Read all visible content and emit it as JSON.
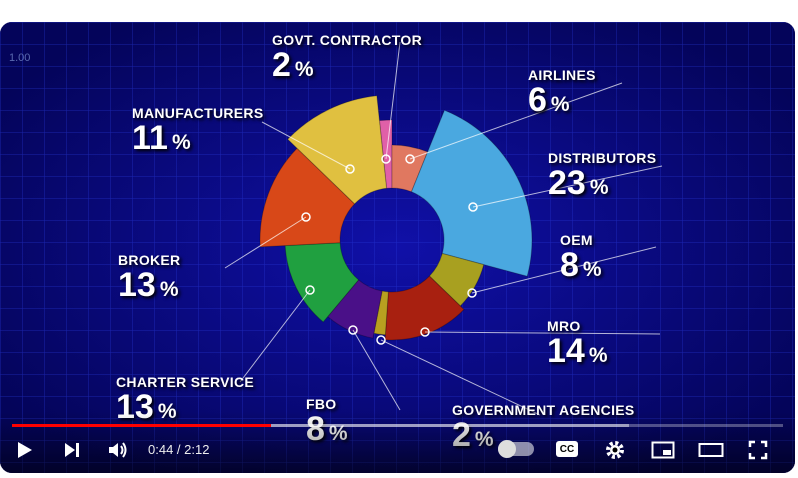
{
  "video": {
    "corner_text": "1.00",
    "segments": [
      {
        "label": "GOVT. CONTRACTOR",
        "value": "2",
        "unit": "%",
        "color": "#e060a8"
      },
      {
        "label": "AIRLINES",
        "value": "6",
        "unit": "%",
        "color": "#e07860"
      },
      {
        "label": "DISTRIBUTORS",
        "value": "23",
        "unit": "%",
        "color": "#4aa8e0"
      },
      {
        "label": "OEM",
        "value": "8",
        "unit": "%",
        "color": "#a8a020"
      },
      {
        "label": "MRO",
        "value": "14",
        "unit": "%",
        "color": "#a82010"
      },
      {
        "label": "GOVERNMENT AGENCIES",
        "value": "2",
        "unit": "%",
        "color": "#b8a020"
      },
      {
        "label": "FBO",
        "value": "8",
        "unit": "%",
        "color": "#4a1088"
      },
      {
        "label": "CHARTER SERVICE",
        "value": "13",
        "unit": "%",
        "color": "#20a040"
      },
      {
        "label": "BROKER",
        "value": "13",
        "unit": "%",
        "color": "#d84818"
      },
      {
        "label": "MANUFACTURERS",
        "value": "11",
        "unit": "%",
        "color": "#e0c040"
      }
    ]
  },
  "player": {
    "current_time": "0:44",
    "duration": "2:12",
    "time_display": "0:44 / 2:12",
    "progress_played": 0.336,
    "cc_label": "CC",
    "icons": [
      "play-icon",
      "next-icon",
      "volume-icon",
      "autoplay-toggle",
      "captions-icon",
      "settings-icon",
      "miniplayer-icon",
      "theater-icon",
      "fullscreen-icon"
    ]
  }
}
